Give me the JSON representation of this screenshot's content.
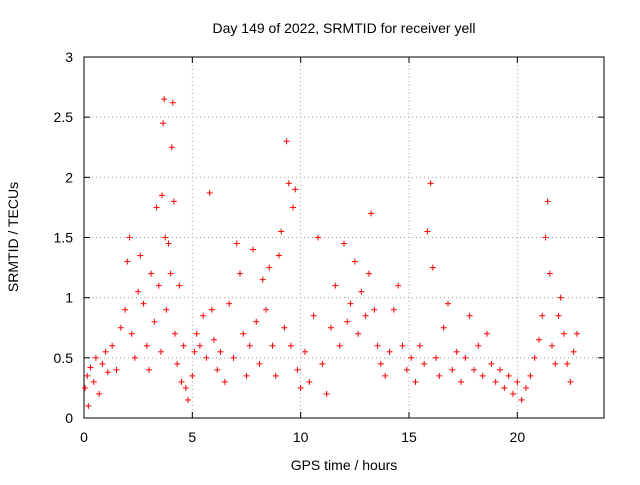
{
  "chart_data": {
    "type": "scatter",
    "title": "Day 149 of 2022, SRMTID for receiver yell",
    "xlabel": "GPS time / hours",
    "ylabel": "SRMTID / TECUs",
    "xlim": [
      0,
      24
    ],
    "ylim": [
      0,
      3
    ],
    "xticks": [
      0,
      5,
      10,
      15,
      20
    ],
    "yticks": [
      0,
      0.5,
      1,
      1.5,
      2,
      2.5,
      3
    ],
    "grid": true,
    "marker": "plus",
    "color": "#ff0000",
    "series": [
      {
        "name": "SRMTID",
        "points": [
          [
            0.05,
            0.25
          ],
          [
            0.15,
            0.35
          ],
          [
            0.2,
            0.1
          ],
          [
            0.3,
            0.42
          ],
          [
            0.45,
            0.3
          ],
          [
            0.55,
            0.5
          ],
          [
            0.7,
            0.2
          ],
          [
            0.85,
            0.45
          ],
          [
            1.0,
            0.55
          ],
          [
            1.1,
            0.38
          ],
          [
            1.3,
            0.6
          ],
          [
            1.5,
            0.4
          ],
          [
            1.7,
            0.75
          ],
          [
            1.9,
            0.9
          ],
          [
            2.0,
            1.3
          ],
          [
            2.1,
            1.5
          ],
          [
            2.2,
            0.7
          ],
          [
            2.35,
            0.5
          ],
          [
            2.5,
            1.05
          ],
          [
            2.6,
            1.35
          ],
          [
            2.75,
            0.95
          ],
          [
            2.9,
            0.6
          ],
          [
            3.0,
            0.4
          ],
          [
            3.1,
            1.2
          ],
          [
            3.25,
            0.8
          ],
          [
            3.35,
            1.75
          ],
          [
            3.45,
            1.1
          ],
          [
            3.55,
            0.55
          ],
          [
            3.6,
            1.85
          ],
          [
            3.65,
            2.45
          ],
          [
            3.7,
            2.65
          ],
          [
            3.75,
            1.5
          ],
          [
            3.8,
            0.9
          ],
          [
            3.9,
            1.45
          ],
          [
            4.0,
            1.2
          ],
          [
            4.05,
            2.25
          ],
          [
            4.1,
            2.62
          ],
          [
            4.15,
            1.8
          ],
          [
            4.2,
            0.7
          ],
          [
            4.3,
            0.45
          ],
          [
            4.4,
            1.1
          ],
          [
            4.5,
            0.3
          ],
          [
            4.6,
            0.6
          ],
          [
            4.7,
            0.25
          ],
          [
            4.8,
            0.15
          ],
          [
            5.0,
            0.35
          ],
          [
            5.1,
            0.55
          ],
          [
            5.2,
            0.7
          ],
          [
            5.35,
            0.6
          ],
          [
            5.5,
            0.85
          ],
          [
            5.65,
            0.5
          ],
          [
            5.8,
            1.87
          ],
          [
            5.9,
            0.9
          ],
          [
            6.0,
            0.65
          ],
          [
            6.15,
            0.4
          ],
          [
            6.3,
            0.55
          ],
          [
            6.5,
            0.3
          ],
          [
            6.7,
            0.95
          ],
          [
            6.9,
            0.5
          ],
          [
            7.05,
            1.45
          ],
          [
            7.2,
            1.2
          ],
          [
            7.35,
            0.7
          ],
          [
            7.5,
            0.35
          ],
          [
            7.65,
            0.6
          ],
          [
            7.8,
            1.4
          ],
          [
            7.95,
            0.8
          ],
          [
            8.1,
            0.45
          ],
          [
            8.25,
            1.15
          ],
          [
            8.4,
            0.9
          ],
          [
            8.55,
            1.25
          ],
          [
            8.7,
            0.6
          ],
          [
            8.85,
            0.35
          ],
          [
            9.0,
            1.35
          ],
          [
            9.1,
            1.55
          ],
          [
            9.25,
            0.75
          ],
          [
            9.35,
            2.3
          ],
          [
            9.45,
            1.95
          ],
          [
            9.55,
            0.6
          ],
          [
            9.65,
            1.75
          ],
          [
            9.75,
            1.9
          ],
          [
            9.85,
            0.4
          ],
          [
            10.0,
            0.25
          ],
          [
            10.2,
            0.55
          ],
          [
            10.4,
            0.3
          ],
          [
            10.6,
            0.85
          ],
          [
            10.8,
            1.5
          ],
          [
            11.0,
            0.45
          ],
          [
            11.2,
            0.2
          ],
          [
            11.4,
            0.75
          ],
          [
            11.6,
            1.1
          ],
          [
            11.8,
            0.6
          ],
          [
            12.0,
            1.45
          ],
          [
            12.15,
            0.8
          ],
          [
            12.3,
            0.95
          ],
          [
            12.5,
            1.3
          ],
          [
            12.65,
            0.7
          ],
          [
            12.8,
            1.05
          ],
          [
            13.0,
            0.85
          ],
          [
            13.15,
            1.2
          ],
          [
            13.25,
            1.7
          ],
          [
            13.4,
            0.9
          ],
          [
            13.55,
            0.6
          ],
          [
            13.7,
            0.45
          ],
          [
            13.9,
            0.35
          ],
          [
            14.1,
            0.55
          ],
          [
            14.3,
            0.9
          ],
          [
            14.5,
            1.1
          ],
          [
            14.7,
            0.6
          ],
          [
            14.9,
            0.4
          ],
          [
            15.1,
            0.5
          ],
          [
            15.3,
            0.3
          ],
          [
            15.5,
            0.6
          ],
          [
            15.7,
            0.45
          ],
          [
            15.85,
            1.55
          ],
          [
            16.0,
            1.95
          ],
          [
            16.1,
            1.25
          ],
          [
            16.25,
            0.5
          ],
          [
            16.4,
            0.35
          ],
          [
            16.6,
            0.75
          ],
          [
            16.8,
            0.95
          ],
          [
            17.0,
            0.4
          ],
          [
            17.2,
            0.55
          ],
          [
            17.4,
            0.3
          ],
          [
            17.6,
            0.5
          ],
          [
            17.8,
            0.85
          ],
          [
            18.0,
            0.4
          ],
          [
            18.2,
            0.6
          ],
          [
            18.4,
            0.35
          ],
          [
            18.6,
            0.7
          ],
          [
            18.8,
            0.45
          ],
          [
            19.0,
            0.3
          ],
          [
            19.2,
            0.4
          ],
          [
            19.4,
            0.25
          ],
          [
            19.6,
            0.35
          ],
          [
            19.8,
            0.2
          ],
          [
            20.0,
            0.3
          ],
          [
            20.2,
            0.15
          ],
          [
            20.4,
            0.25
          ],
          [
            20.6,
            0.35
          ],
          [
            20.8,
            0.5
          ],
          [
            21.0,
            0.65
          ],
          [
            21.15,
            0.85
          ],
          [
            21.3,
            1.5
          ],
          [
            21.4,
            1.8
          ],
          [
            21.5,
            1.2
          ],
          [
            21.6,
            0.6
          ],
          [
            21.75,
            0.45
          ],
          [
            21.9,
            0.85
          ],
          [
            22.0,
            1.0
          ],
          [
            22.15,
            0.7
          ],
          [
            22.3,
            0.45
          ],
          [
            22.45,
            0.3
          ],
          [
            22.6,
            0.55
          ],
          [
            22.75,
            0.7
          ]
        ]
      }
    ]
  }
}
